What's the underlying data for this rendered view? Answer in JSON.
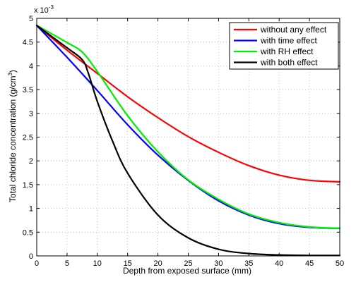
{
  "chart_data": {
    "type": "line",
    "title": "",
    "xlabel": "Depth from exposed surface (mm)",
    "ylabel": "Total chloride concentration (g/cm",
    "ylabel_superscript": "3",
    "ylabel_suffix": ")",
    "y_exponent_base": "x 10",
    "y_exponent_power": "-3",
    "xlim": [
      0,
      50
    ],
    "ylim": [
      0,
      5
    ],
    "x_ticks": [
      0,
      5,
      10,
      15,
      20,
      25,
      30,
      35,
      40,
      45,
      50
    ],
    "y_ticks": [
      0,
      0.5,
      1,
      1.5,
      2,
      2.5,
      3,
      3.5,
      4,
      4.5,
      5
    ],
    "x_tick_labels": [
      "0",
      "5",
      "10",
      "15",
      "20",
      "25",
      "30",
      "35",
      "40",
      "45",
      "50"
    ],
    "y_tick_labels": [
      "0",
      "0.5",
      "1",
      "1.5",
      "2",
      "2.5",
      "3",
      "3.5",
      "4",
      "4.5",
      "5"
    ],
    "grid": true,
    "legend_position": "top-right",
    "series": [
      {
        "name": "without any effect",
        "color": "#ff0000",
        "x": [
          0,
          5,
          10,
          15,
          20,
          25,
          30,
          35,
          40,
          45,
          50
        ],
        "y": [
          4.85,
          4.33,
          3.84,
          3.35,
          2.91,
          2.51,
          2.18,
          1.9,
          1.7,
          1.59,
          1.56
        ]
      },
      {
        "name": "with time effect",
        "color": "#0000ff",
        "x": [
          0,
          5,
          10,
          15,
          20,
          25,
          30,
          35,
          40,
          45,
          50
        ],
        "y": [
          4.85,
          4.18,
          3.48,
          2.76,
          2.12,
          1.59,
          1.16,
          0.86,
          0.68,
          0.6,
          0.58
        ]
      },
      {
        "name": "with RH effect",
        "color": "#00ee00",
        "x": [
          0,
          5,
          7.5,
          10,
          15,
          20,
          25,
          30,
          35,
          40,
          45,
          50
        ],
        "y": [
          4.85,
          4.49,
          4.29,
          3.88,
          2.95,
          2.19,
          1.6,
          1.19,
          0.88,
          0.7,
          0.61,
          0.58
        ]
      },
      {
        "name": "with both effect",
        "color": "#000000",
        "x": [
          0,
          5,
          7.5,
          8.5,
          10,
          12.5,
          15,
          20,
          25,
          30,
          35,
          40,
          45,
          50
        ],
        "y": [
          4.85,
          4.38,
          4.13,
          3.85,
          3.25,
          2.42,
          1.74,
          0.86,
          0.38,
          0.14,
          0.05,
          0.02,
          0.01,
          0.01
        ]
      }
    ]
  }
}
